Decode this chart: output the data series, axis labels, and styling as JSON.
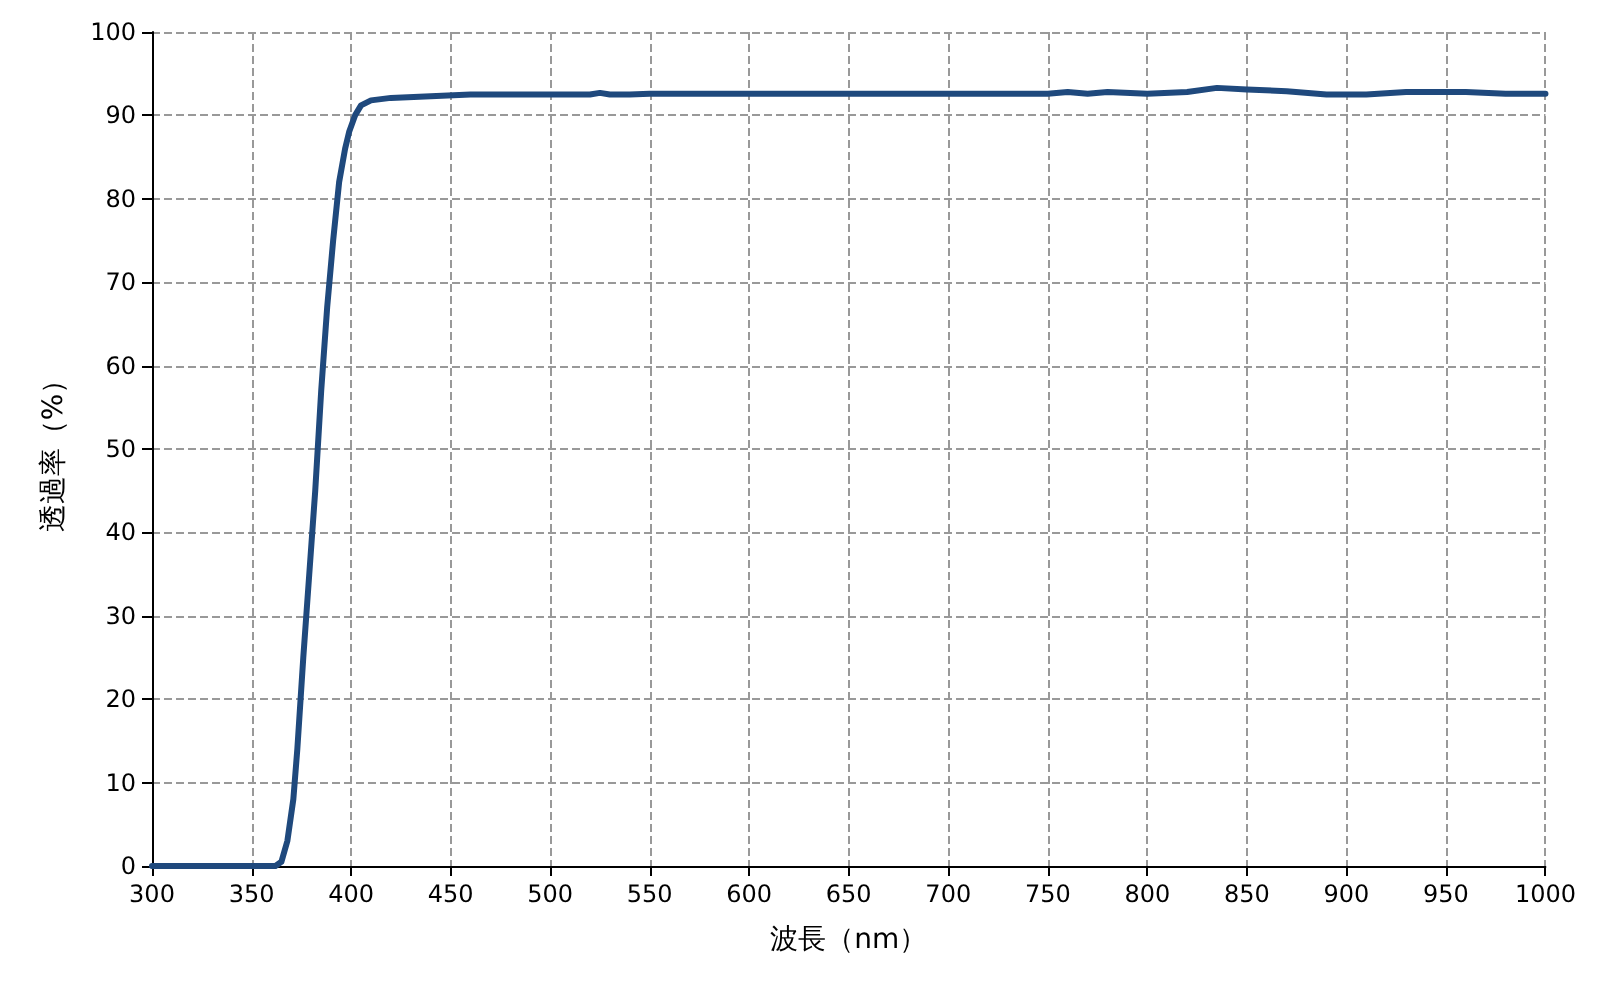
{
  "chart_data": {
    "type": "line",
    "xlabel": "波長（nm）",
    "ylabel": "透過率（%）",
    "xlim": [
      300,
      1000
    ],
    "xticks": [
      300,
      350,
      400,
      450,
      500,
      550,
      600,
      650,
      700,
      750,
      800,
      850,
      900,
      950,
      1000
    ],
    "ylim": [
      0,
      100
    ],
    "yticks": [
      0,
      10,
      20,
      30,
      40,
      50,
      60,
      70,
      80,
      90,
      100
    ],
    "grid": true,
    "marker": "none",
    "line_style": "solid",
    "series": [
      {
        "color": "#1f497d",
        "x": [
          300,
          362,
          365,
          368,
          371,
          373,
          376,
          379,
          382,
          385,
          388,
          391,
          394,
          397,
          399,
          402,
          405,
          410,
          420,
          440,
          460,
          520,
          525,
          530,
          540,
          550,
          750,
          760,
          770,
          780,
          800,
          820,
          835,
          850,
          870,
          890,
          910,
          930,
          960,
          980,
          1000
        ],
        "values": [
          0,
          0,
          0.5,
          3,
          8,
          14,
          25,
          35,
          45,
          57,
          67,
          75,
          82,
          86,
          88,
          90,
          91.2,
          91.8,
          92.1,
          92.3,
          92.5,
          92.5,
          92.7,
          92.5,
          92.5,
          92.6,
          92.6,
          92.8,
          92.6,
          92.8,
          92.6,
          92.8,
          93.3,
          93.1,
          92.9,
          92.5,
          92.5,
          92.8,
          92.8,
          92.6,
          92.6
        ]
      }
    ]
  }
}
